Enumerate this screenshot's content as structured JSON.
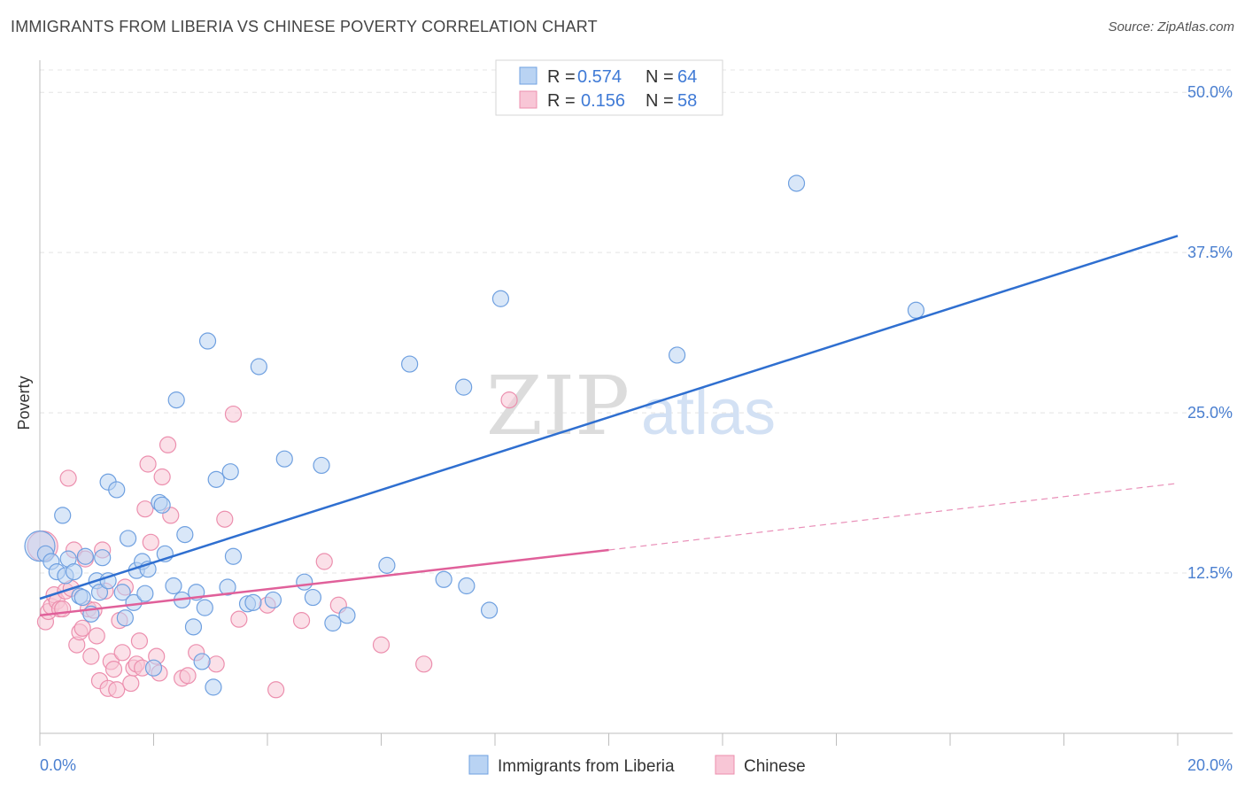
{
  "header": {
    "title": "IMMIGRANTS FROM LIBERIA VS CHINESE POVERTY CORRELATION CHART",
    "source": "Source: ZipAtlas.com"
  },
  "watermark": {
    "zip": "ZIP",
    "atlas": "atlas"
  },
  "legend_top": {
    "rows": [
      {
        "r_label": "R =",
        "r_value": "0.574",
        "n_label": "N =",
        "n_value": "64"
      },
      {
        "r_label": "R =",
        "r_value": "0.156",
        "n_label": "N =",
        "n_value": "58"
      }
    ]
  },
  "legend_bottom": [
    "Immigrants from Liberia",
    "Chinese"
  ],
  "colors": {
    "blue_fill": "#b9d3f3",
    "blue_stroke": "#6fa0e0",
    "blue_line": "#2f6fd0",
    "pink_fill": "#f8c6d6",
    "pink_stroke": "#ec8fae",
    "pink_line": "#e0609a",
    "tick_text": "#4a7fd0",
    "grid": "#e4e4e4"
  },
  "chart_data": {
    "type": "scatter",
    "title": "IMMIGRANTS FROM LIBERIA VS CHINESE POVERTY CORRELATION CHART",
    "xlabel": "",
    "ylabel": "Poverty",
    "xlim": [
      0,
      20
    ],
    "ylim": [
      0,
      52.5
    ],
    "x_tick_labels": [
      "0.0%",
      "20.0%"
    ],
    "y_ticks": [
      12.5,
      25.0,
      37.5,
      50.0
    ],
    "y_tick_labels": [
      "12.5%",
      "25.0%",
      "37.5%",
      "50.0%"
    ],
    "grid": "horizontal dashed",
    "legend_position": "top-center",
    "series": [
      {
        "name": "Immigrants from Liberia",
        "r": 0.574,
        "n": 64,
        "trend": {
          "x": [
            0,
            20
          ],
          "y": [
            10.5,
            38.8
          ]
        },
        "points": [
          [
            0.0,
            14.6,
            "big"
          ],
          [
            0.1,
            14.0
          ],
          [
            0.2,
            13.4
          ],
          [
            0.3,
            12.6
          ],
          [
            0.4,
            17.0
          ],
          [
            0.45,
            12.3
          ],
          [
            0.5,
            13.6
          ],
          [
            0.6,
            12.6
          ],
          [
            0.7,
            10.7
          ],
          [
            0.75,
            10.6
          ],
          [
            0.8,
            13.8
          ],
          [
            0.9,
            9.3
          ],
          [
            1.0,
            11.9
          ],
          [
            1.05,
            11.0
          ],
          [
            1.1,
            13.7
          ],
          [
            1.2,
            11.9
          ],
          [
            1.2,
            19.6
          ],
          [
            1.35,
            19.0
          ],
          [
            1.45,
            11.0
          ],
          [
            1.5,
            9.0
          ],
          [
            1.55,
            15.2
          ],
          [
            1.65,
            10.2
          ],
          [
            1.7,
            12.7
          ],
          [
            1.8,
            13.4
          ],
          [
            1.85,
            10.9
          ],
          [
            1.9,
            12.8
          ],
          [
            2.0,
            5.1
          ],
          [
            2.1,
            18.0
          ],
          [
            2.15,
            17.8
          ],
          [
            2.2,
            14.0
          ],
          [
            2.35,
            11.5
          ],
          [
            2.4,
            26.0
          ],
          [
            2.5,
            10.4
          ],
          [
            2.55,
            15.5
          ],
          [
            2.7,
            8.3
          ],
          [
            2.75,
            11.0
          ],
          [
            2.85,
            5.6
          ],
          [
            2.9,
            9.8
          ],
          [
            2.95,
            30.6
          ],
          [
            3.05,
            3.6
          ],
          [
            3.1,
            19.8
          ],
          [
            3.3,
            11.4
          ],
          [
            3.35,
            20.4
          ],
          [
            3.4,
            13.8
          ],
          [
            3.65,
            10.1
          ],
          [
            3.75,
            10.2
          ],
          [
            3.85,
            28.6
          ],
          [
            4.1,
            10.4
          ],
          [
            4.3,
            21.4
          ],
          [
            4.65,
            11.8
          ],
          [
            4.8,
            10.6
          ],
          [
            4.95,
            20.9
          ],
          [
            5.15,
            8.6
          ],
          [
            5.4,
            9.2
          ],
          [
            6.1,
            13.1
          ],
          [
            6.5,
            28.8
          ],
          [
            7.1,
            12.0
          ],
          [
            7.45,
            27.0
          ],
          [
            7.5,
            11.5
          ],
          [
            7.9,
            9.6
          ],
          [
            8.1,
            33.9
          ],
          [
            11.2,
            29.5
          ],
          [
            13.3,
            42.9
          ],
          [
            15.4,
            33.0
          ]
        ]
      },
      {
        "name": "Chinese",
        "r": 0.156,
        "n": 58,
        "trend_solid": {
          "x": [
            0,
            10
          ],
          "y": [
            9.2,
            14.3
          ]
        },
        "trend_dashed": {
          "x": [
            10,
            20
          ],
          "y": [
            14.3,
            19.5
          ]
        },
        "points": [
          [
            0.05,
            14.6,
            "big"
          ],
          [
            0.1,
            8.7
          ],
          [
            0.15,
            9.5
          ],
          [
            0.2,
            9.9
          ],
          [
            0.25,
            10.8
          ],
          [
            0.3,
            10.3
          ],
          [
            0.35,
            9.7
          ],
          [
            0.4,
            9.7
          ],
          [
            0.45,
            11.1
          ],
          [
            0.5,
            19.9
          ],
          [
            0.55,
            11.3
          ],
          [
            0.6,
            14.3
          ],
          [
            0.65,
            6.9
          ],
          [
            0.7,
            7.9
          ],
          [
            0.75,
            8.2
          ],
          [
            0.8,
            13.6
          ],
          [
            0.85,
            9.7
          ],
          [
            0.9,
            6.0
          ],
          [
            0.95,
            9.6
          ],
          [
            1.0,
            7.6
          ],
          [
            1.05,
            4.1
          ],
          [
            1.1,
            14.3
          ],
          [
            1.15,
            11.1
          ],
          [
            1.2,
            3.5
          ],
          [
            1.25,
            5.6
          ],
          [
            1.3,
            5.0
          ],
          [
            1.35,
            3.4
          ],
          [
            1.4,
            8.8
          ],
          [
            1.45,
            6.3
          ],
          [
            1.5,
            11.4
          ],
          [
            1.6,
            3.9
          ],
          [
            1.65,
            5.1
          ],
          [
            1.7,
            5.4
          ],
          [
            1.75,
            7.2
          ],
          [
            1.8,
            5.1
          ],
          [
            1.85,
            17.5
          ],
          [
            1.9,
            21.0
          ],
          [
            1.95,
            14.9
          ],
          [
            2.05,
            6.0
          ],
          [
            2.1,
            4.7
          ],
          [
            2.15,
            20.0
          ],
          [
            2.25,
            22.5
          ],
          [
            2.3,
            17.0
          ],
          [
            2.5,
            4.3
          ],
          [
            2.6,
            4.5
          ],
          [
            2.75,
            6.3
          ],
          [
            3.1,
            5.4
          ],
          [
            3.25,
            16.7
          ],
          [
            3.4,
            24.9
          ],
          [
            3.5,
            8.9
          ],
          [
            4.0,
            10.0
          ],
          [
            4.15,
            3.4
          ],
          [
            4.6,
            8.8
          ],
          [
            5.0,
            13.4
          ],
          [
            5.25,
            10.0
          ],
          [
            6.0,
            6.9
          ],
          [
            6.75,
            5.4
          ],
          [
            8.25,
            26.0
          ]
        ]
      }
    ]
  }
}
